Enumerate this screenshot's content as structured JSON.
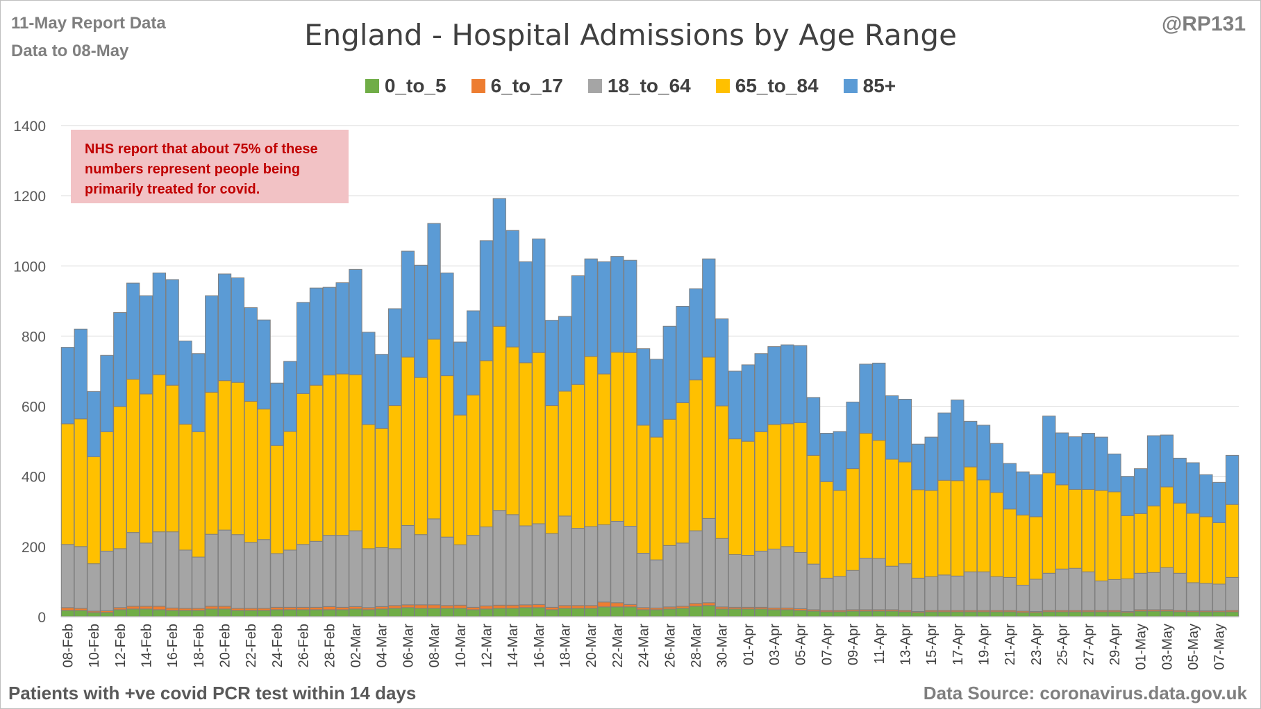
{
  "header": {
    "report_date": "11-May Report Data",
    "data_to": "Data to 08-May",
    "handle": "@RP131"
  },
  "note": {
    "line1": "NHS report that about 75% of these",
    "line2": "numbers represent people being",
    "line3": "primarily treated for covid."
  },
  "footer": {
    "left": "Patients with  +ve covid PCR test within 14 days",
    "right": "Data Source: coronavirus.data.gov.uk"
  },
  "colors": {
    "0_to_5": "#70ad47",
    "6_to_17": "#ed7d31",
    "18_to_64": "#a5a5a5",
    "65_to_84": "#ffc000",
    "85+": "#5b9bd5",
    "grid": "#d9d9d9",
    "bar_outline": "#7f7f7f"
  },
  "chart_data": {
    "type": "bar",
    "stacked": true,
    "title": "England - Hospital Admissions by Age Range",
    "xlabel": "",
    "ylabel": "",
    "ylim": [
      0,
      1400
    ],
    "yticks": [
      0,
      200,
      400,
      600,
      800,
      1000,
      1200,
      1400
    ],
    "grid": true,
    "legend_position": "top",
    "tick_label_every": 2,
    "categories": [
      "08-Feb",
      "09-Feb",
      "10-Feb",
      "11-Feb",
      "12-Feb",
      "13-Feb",
      "14-Feb",
      "15-Feb",
      "16-Feb",
      "17-Feb",
      "18-Feb",
      "19-Feb",
      "20-Feb",
      "21-Feb",
      "22-Feb",
      "23-Feb",
      "24-Feb",
      "25-Feb",
      "26-Feb",
      "27-Feb",
      "28-Feb",
      "01-Mar",
      "02-Mar",
      "03-Mar",
      "04-Mar",
      "05-Mar",
      "06-Mar",
      "07-Mar",
      "08-Mar",
      "09-Mar",
      "10-Mar",
      "11-Mar",
      "12-Mar",
      "13-Mar",
      "14-Mar",
      "15-Mar",
      "16-Mar",
      "17-Mar",
      "18-Mar",
      "19-Mar",
      "20-Mar",
      "21-Mar",
      "22-Mar",
      "23-Mar",
      "24-Mar",
      "25-Mar",
      "26-Mar",
      "27-Mar",
      "28-Mar",
      "29-Mar",
      "30-Mar",
      "31-Mar",
      "01-Apr",
      "02-Apr",
      "03-Apr",
      "04-Apr",
      "05-Apr",
      "06-Apr",
      "07-Apr",
      "08-Apr",
      "09-Apr",
      "10-Apr",
      "11-Apr",
      "12-Apr",
      "13-Apr",
      "14-Apr",
      "15-Apr",
      "16-Apr",
      "17-Apr",
      "18-Apr",
      "19-Apr",
      "20-Apr",
      "21-Apr",
      "22-Apr",
      "23-Apr",
      "24-Apr",
      "25-Apr",
      "26-Apr",
      "27-Apr",
      "28-Apr",
      "29-Apr",
      "30-Apr",
      "01-May",
      "02-May",
      "03-May",
      "04-May",
      "05-May",
      "06-May",
      "07-May",
      "08-May"
    ],
    "series": [
      {
        "name": "0_to_5",
        "color_key": "0_to_5",
        "values": [
          18,
          18,
          12,
          12,
          20,
          22,
          22,
          20,
          18,
          18,
          18,
          22,
          22,
          18,
          18,
          18,
          20,
          20,
          20,
          20,
          20,
          20,
          22,
          20,
          22,
          24,
          26,
          24,
          24,
          24,
          24,
          20,
          22,
          24,
          24,
          26,
          26,
          20,
          24,
          24,
          24,
          28,
          28,
          28,
          20,
          20,
          22,
          24,
          30,
          32,
          22,
          22,
          22,
          22,
          20,
          20,
          18,
          16,
          14,
          14,
          16,
          16,
          16,
          16,
          14,
          12,
          14,
          14,
          14,
          14,
          14,
          14,
          14,
          12,
          12,
          14,
          14,
          14,
          14,
          14,
          14,
          12,
          16,
          16,
          16,
          14,
          14,
          14,
          14,
          14
        ]
      },
      {
        "name": "6_to_17",
        "color_key": "6_to_17",
        "values": [
          8,
          6,
          4,
          5,
          6,
          8,
          8,
          10,
          7,
          6,
          6,
          8,
          8,
          6,
          6,
          6,
          7,
          7,
          7,
          7,
          9,
          7,
          7,
          6,
          7,
          8,
          8,
          10,
          10,
          8,
          9,
          7,
          9,
          9,
          9,
          8,
          9,
          7,
          8,
          8,
          8,
          14,
          12,
          7,
          6,
          5,
          6,
          6,
          8,
          8,
          6,
          5,
          5,
          5,
          5,
          5,
          5,
          4,
          4,
          4,
          4,
          4,
          4,
          4,
          4,
          3,
          4,
          4,
          4,
          4,
          4,
          4,
          4,
          4,
          3,
          4,
          4,
          4,
          4,
          4,
          4,
          3,
          4,
          4,
          4,
          4,
          3,
          3,
          3,
          4
        ]
      },
      {
        "name": "18_to_64",
        "color_key": "18_to_64",
        "values": [
          180,
          176,
          135,
          170,
          168,
          210,
          180,
          212,
          217,
          166,
          146,
          205,
          217,
          210,
          188,
          196,
          153,
          163,
          179,
          188,
          203,
          205,
          216,
          168,
          168,
          162,
          226,
          200,
          245,
          195,
          172,
          205,
          225,
          270,
          258,
          225,
          230,
          210,
          255,
          220,
          225,
          220,
          232,
          223,
          155,
          137,
          175,
          180,
          207,
          240,
          195,
          150,
          148,
          160,
          168,
          175,
          160,
          130,
          92,
          97,
          112,
          147,
          146,
          124,
          133,
          95,
          96,
          101,
          98,
          110,
          110,
          96,
          94,
          74,
          92,
          106,
          118,
          120,
          110,
          84,
          88,
          93,
          104,
          106,
          120,
          106,
          80,
          78,
          76,
          94
        ]
      },
      {
        "name": "65_to_84",
        "color_key": "65_to_84",
        "values": [
          344,
          364,
          305,
          340,
          405,
          437,
          425,
          448,
          418,
          359,
          357,
          405,
          426,
          434,
          402,
          372,
          308,
          338,
          430,
          445,
          457,
          460,
          445,
          354,
          340,
          408,
          480,
          448,
          512,
          460,
          370,
          400,
          474,
          525,
          478,
          465,
          488,
          365,
          356,
          410,
          485,
          430,
          482,
          495,
          365,
          350,
          360,
          400,
          430,
          460,
          378,
          330,
          325,
          340,
          355,
          350,
          370,
          310,
          275,
          245,
          290,
          356,
          337,
          305,
          290,
          252,
          246,
          270,
          272,
          299,
          262,
          240,
          195,
          200,
          178,
          286,
          240,
          225,
          235,
          258,
          250,
          180,
          170,
          190,
          230,
          200,
          198,
          190,
          175,
          208
        ]
      },
      {
        "name": "85+",
        "color_key": "85+",
        "values": [
          218,
          256,
          186,
          218,
          268,
          274,
          280,
          290,
          301,
          237,
          223,
          275,
          304,
          298,
          267,
          254,
          178,
          200,
          260,
          277,
          250,
          260,
          300,
          263,
          211,
          276,
          302,
          320,
          330,
          293,
          208,
          240,
          342,
          364,
          332,
          288,
          324,
          243,
          213,
          310,
          278,
          320,
          273,
          263,
          218,
          222,
          265,
          275,
          260,
          280,
          248,
          193,
          218,
          223,
          222,
          225,
          220,
          165,
          138,
          168,
          190,
          197,
          220,
          181,
          179,
          130,
          152,
          192,
          230,
          130,
          156,
          140,
          130,
          123,
          120,
          162,
          148,
          150,
          160,
          152,
          108,
          112,
          128,
          200,
          148,
          128,
          144,
          120,
          115,
          140
        ]
      }
    ]
  }
}
